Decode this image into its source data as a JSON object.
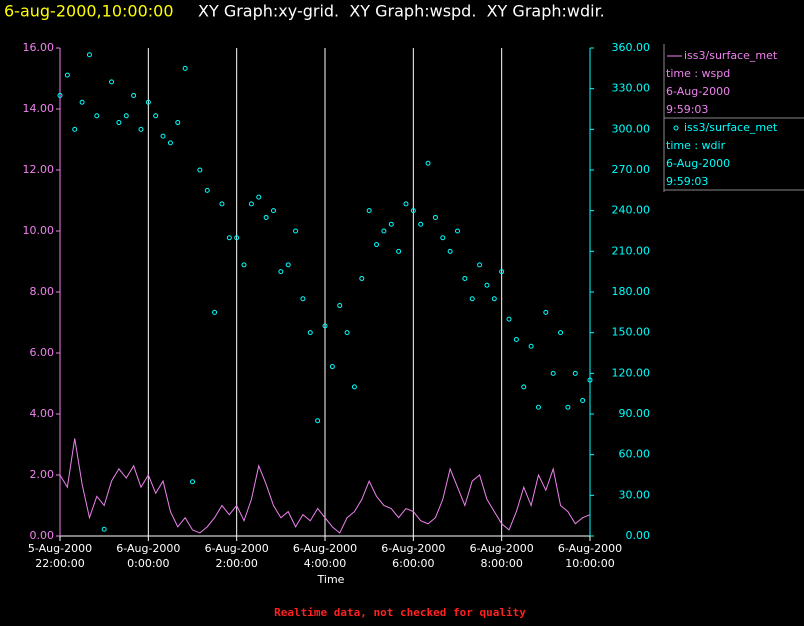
{
  "chart_data": {
    "type": "xy",
    "title_time": "6-aug-2000,10:00:00",
    "title": "XY Graph:xy-grid.  XY Graph:wspd.  XY Graph:wdir.",
    "xlabel": "Time",
    "footer": "Realtime data, not checked for quality",
    "grid": "x",
    "xlim": [
      "2000-08-05T22:00",
      "2000-08-06T10:00"
    ],
    "xticks": [
      {
        "value": "2000-08-05T22:00",
        "label": [
          "5-Aug-2000",
          "22:00:00"
        ]
      },
      {
        "value": "2000-08-06T00:00",
        "label": [
          "6-Aug-2000",
          "0:00:00"
        ]
      },
      {
        "value": "2000-08-06T02:00",
        "label": [
          "6-Aug-2000",
          "2:00:00"
        ]
      },
      {
        "value": "2000-08-06T04:00",
        "label": [
          "6-Aug-2000",
          "4:00:00"
        ]
      },
      {
        "value": "2000-08-06T06:00",
        "label": [
          "6-Aug-2000",
          "6:00:00"
        ]
      },
      {
        "value": "2000-08-06T08:00",
        "label": [
          "6-Aug-2000",
          "8:00:00"
        ]
      },
      {
        "value": "2000-08-06T10:00",
        "label": [
          "6-Aug-2000",
          "10:00:00"
        ]
      }
    ],
    "ylim": [
      0,
      16
    ],
    "yticks": [
      {
        "value": 0,
        "label": "0.00"
      },
      {
        "value": 2,
        "label": "2.00"
      },
      {
        "value": 4,
        "label": "4.00"
      },
      {
        "value": 6,
        "label": "6.00"
      },
      {
        "value": 8,
        "label": "8.00"
      },
      {
        "value": 10,
        "label": "10.00"
      },
      {
        "value": 12,
        "label": "12.00"
      },
      {
        "value": 14,
        "label": "14.00"
      },
      {
        "value": 16,
        "label": "16.00"
      }
    ],
    "y2lim": [
      0,
      360
    ],
    "y2ticks": [
      {
        "value": 0,
        "label": "0.00"
      },
      {
        "value": 30,
        "label": "30.00"
      },
      {
        "value": 60,
        "label": "60.00"
      },
      {
        "value": 90,
        "label": "90.00"
      },
      {
        "value": 120,
        "label": "120.00"
      },
      {
        "value": 150,
        "label": "150.00"
      },
      {
        "value": 180,
        "label": "180.00"
      },
      {
        "value": 210,
        "label": "210.00"
      },
      {
        "value": 240,
        "label": "240.00"
      },
      {
        "value": 270,
        "label": "270.00"
      },
      {
        "value": 300,
        "label": "300.00"
      },
      {
        "value": 330,
        "label": "330.00"
      },
      {
        "value": 360,
        "label": "360.00"
      }
    ],
    "x": [
      "2000-08-05T22:00",
      "2000-08-05T22:10",
      "2000-08-05T22:20",
      "2000-08-05T22:30",
      "2000-08-05T22:40",
      "2000-08-05T22:50",
      "2000-08-05T23:00",
      "2000-08-05T23:10",
      "2000-08-05T23:20",
      "2000-08-05T23:30",
      "2000-08-05T23:40",
      "2000-08-05T23:50",
      "2000-08-06T00:00",
      "2000-08-06T00:10",
      "2000-08-06T00:20",
      "2000-08-06T00:30",
      "2000-08-06T00:40",
      "2000-08-06T00:50",
      "2000-08-06T01:00",
      "2000-08-06T01:10",
      "2000-08-06T01:20",
      "2000-08-06T01:30",
      "2000-08-06T01:40",
      "2000-08-06T01:50",
      "2000-08-06T02:00",
      "2000-08-06T02:10",
      "2000-08-06T02:20",
      "2000-08-06T02:30",
      "2000-08-06T02:40",
      "2000-08-06T02:50",
      "2000-08-06T03:00",
      "2000-08-06T03:10",
      "2000-08-06T03:20",
      "2000-08-06T03:30",
      "2000-08-06T03:40",
      "2000-08-06T03:50",
      "2000-08-06T04:00",
      "2000-08-06T04:10",
      "2000-08-06T04:20",
      "2000-08-06T04:30",
      "2000-08-06T04:40",
      "2000-08-06T04:50",
      "2000-08-06T05:00",
      "2000-08-06T05:10",
      "2000-08-06T05:20",
      "2000-08-06T05:30",
      "2000-08-06T05:40",
      "2000-08-06T05:50",
      "2000-08-06T06:00",
      "2000-08-06T06:10",
      "2000-08-06T06:20",
      "2000-08-06T06:30",
      "2000-08-06T06:40",
      "2000-08-06T06:50",
      "2000-08-06T07:00",
      "2000-08-06T07:10",
      "2000-08-06T07:20",
      "2000-08-06T07:30",
      "2000-08-06T07:40",
      "2000-08-06T07:50",
      "2000-08-06T08:00",
      "2000-08-06T08:10",
      "2000-08-06T08:20",
      "2000-08-06T08:30",
      "2000-08-06T08:40",
      "2000-08-06T08:50",
      "2000-08-06T09:00",
      "2000-08-06T09:10",
      "2000-08-06T09:20",
      "2000-08-06T09:30",
      "2000-08-06T09:40",
      "2000-08-06T09:50",
      "2000-08-06T10:00"
    ],
    "series": [
      {
        "name": "iss3/surface_met",
        "legend_info": [
          "time : wspd",
          "6-Aug-2000",
          "9:59:03"
        ],
        "kind": "line",
        "color": "#ee82ee",
        "values": [
          2.0,
          1.6,
          3.2,
          1.7,
          0.6,
          1.3,
          1.0,
          1.8,
          2.2,
          1.9,
          2.3,
          1.6,
          2.0,
          1.4,
          1.8,
          0.8,
          0.3,
          0.6,
          0.2,
          0.1,
          0.3,
          0.6,
          1.0,
          0.7,
          1.0,
          0.5,
          1.2,
          2.3,
          1.7,
          1.0,
          0.6,
          0.8,
          0.3,
          0.7,
          0.5,
          0.9,
          0.6,
          0.3,
          0.1,
          0.6,
          0.8,
          1.2,
          1.8,
          1.3,
          1.0,
          0.9,
          0.6,
          0.9,
          0.8,
          0.5,
          0.4,
          0.6,
          1.2,
          2.2,
          1.6,
          1.0,
          1.8,
          2.0,
          1.2,
          0.8,
          0.4,
          0.2,
          0.8,
          1.6,
          1.0,
          2.0,
          1.5,
          2.2,
          1.0,
          0.8,
          0.4,
          0.6,
          0.7
        ]
      },
      {
        "name": "iss3/surface_met",
        "legend_info": [
          "time : wdir",
          "6-Aug-2000",
          "9:59:03"
        ],
        "kind": "scatter",
        "axis": "y2",
        "color": "#00ffff",
        "values": [
          325,
          340,
          300,
          320,
          355,
          310,
          5,
          335,
          305,
          310,
          325,
          300,
          320,
          310,
          295,
          290,
          305,
          345,
          40,
          270,
          255,
          165,
          245,
          220,
          220,
          200,
          245,
          250,
          235,
          240,
          195,
          200,
          225,
          175,
          150,
          85,
          155,
          125,
          170,
          150,
          110,
          190,
          240,
          215,
          225,
          230,
          210,
          245,
          240,
          230,
          275,
          235,
          220,
          210,
          225,
          190,
          175,
          200,
          185,
          175,
          195,
          160,
          145,
          110,
          140,
          95,
          165,
          120,
          150,
          95,
          120,
          100,
          115
        ]
      }
    ]
  }
}
